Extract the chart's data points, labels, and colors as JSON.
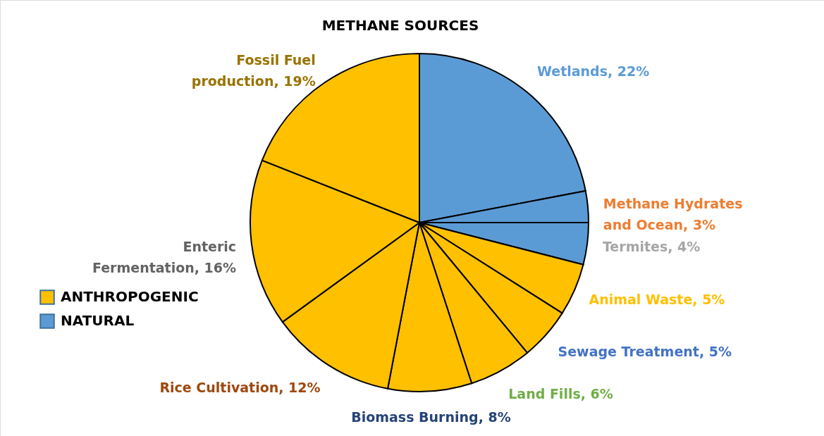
{
  "chart_data": {
    "type": "pie",
    "title": "METHANE SOURCES",
    "categories": [
      "Wetlands",
      "Methane Hydrates and Ocean",
      "Termites",
      "Animal Waste",
      "Sewage Treatment",
      "Land Fills",
      "Biomass Burning",
      "Rice Cultivation",
      "Enteric Fermentation",
      "Fossil Fuel production"
    ],
    "values": [
      22,
      3,
      4,
      5,
      5,
      6,
      8,
      12,
      16,
      19
    ],
    "value_labels": [
      "22%",
      "3%",
      "4%",
      "5%",
      "5%",
      "6%",
      "8%",
      "12%",
      "16%",
      "19%"
    ],
    "colors": [
      "#5b9bd5",
      "#5b9bd5",
      "#5b9bd5",
      "#ffc000",
      "#ffc000",
      "#ffc000",
      "#ffc000",
      "#ffc000",
      "#ffc000",
      "#ffc000"
    ],
    "annotations": [
      "ANTHROPOGENIC",
      "NATURAL"
    ]
  }
}
